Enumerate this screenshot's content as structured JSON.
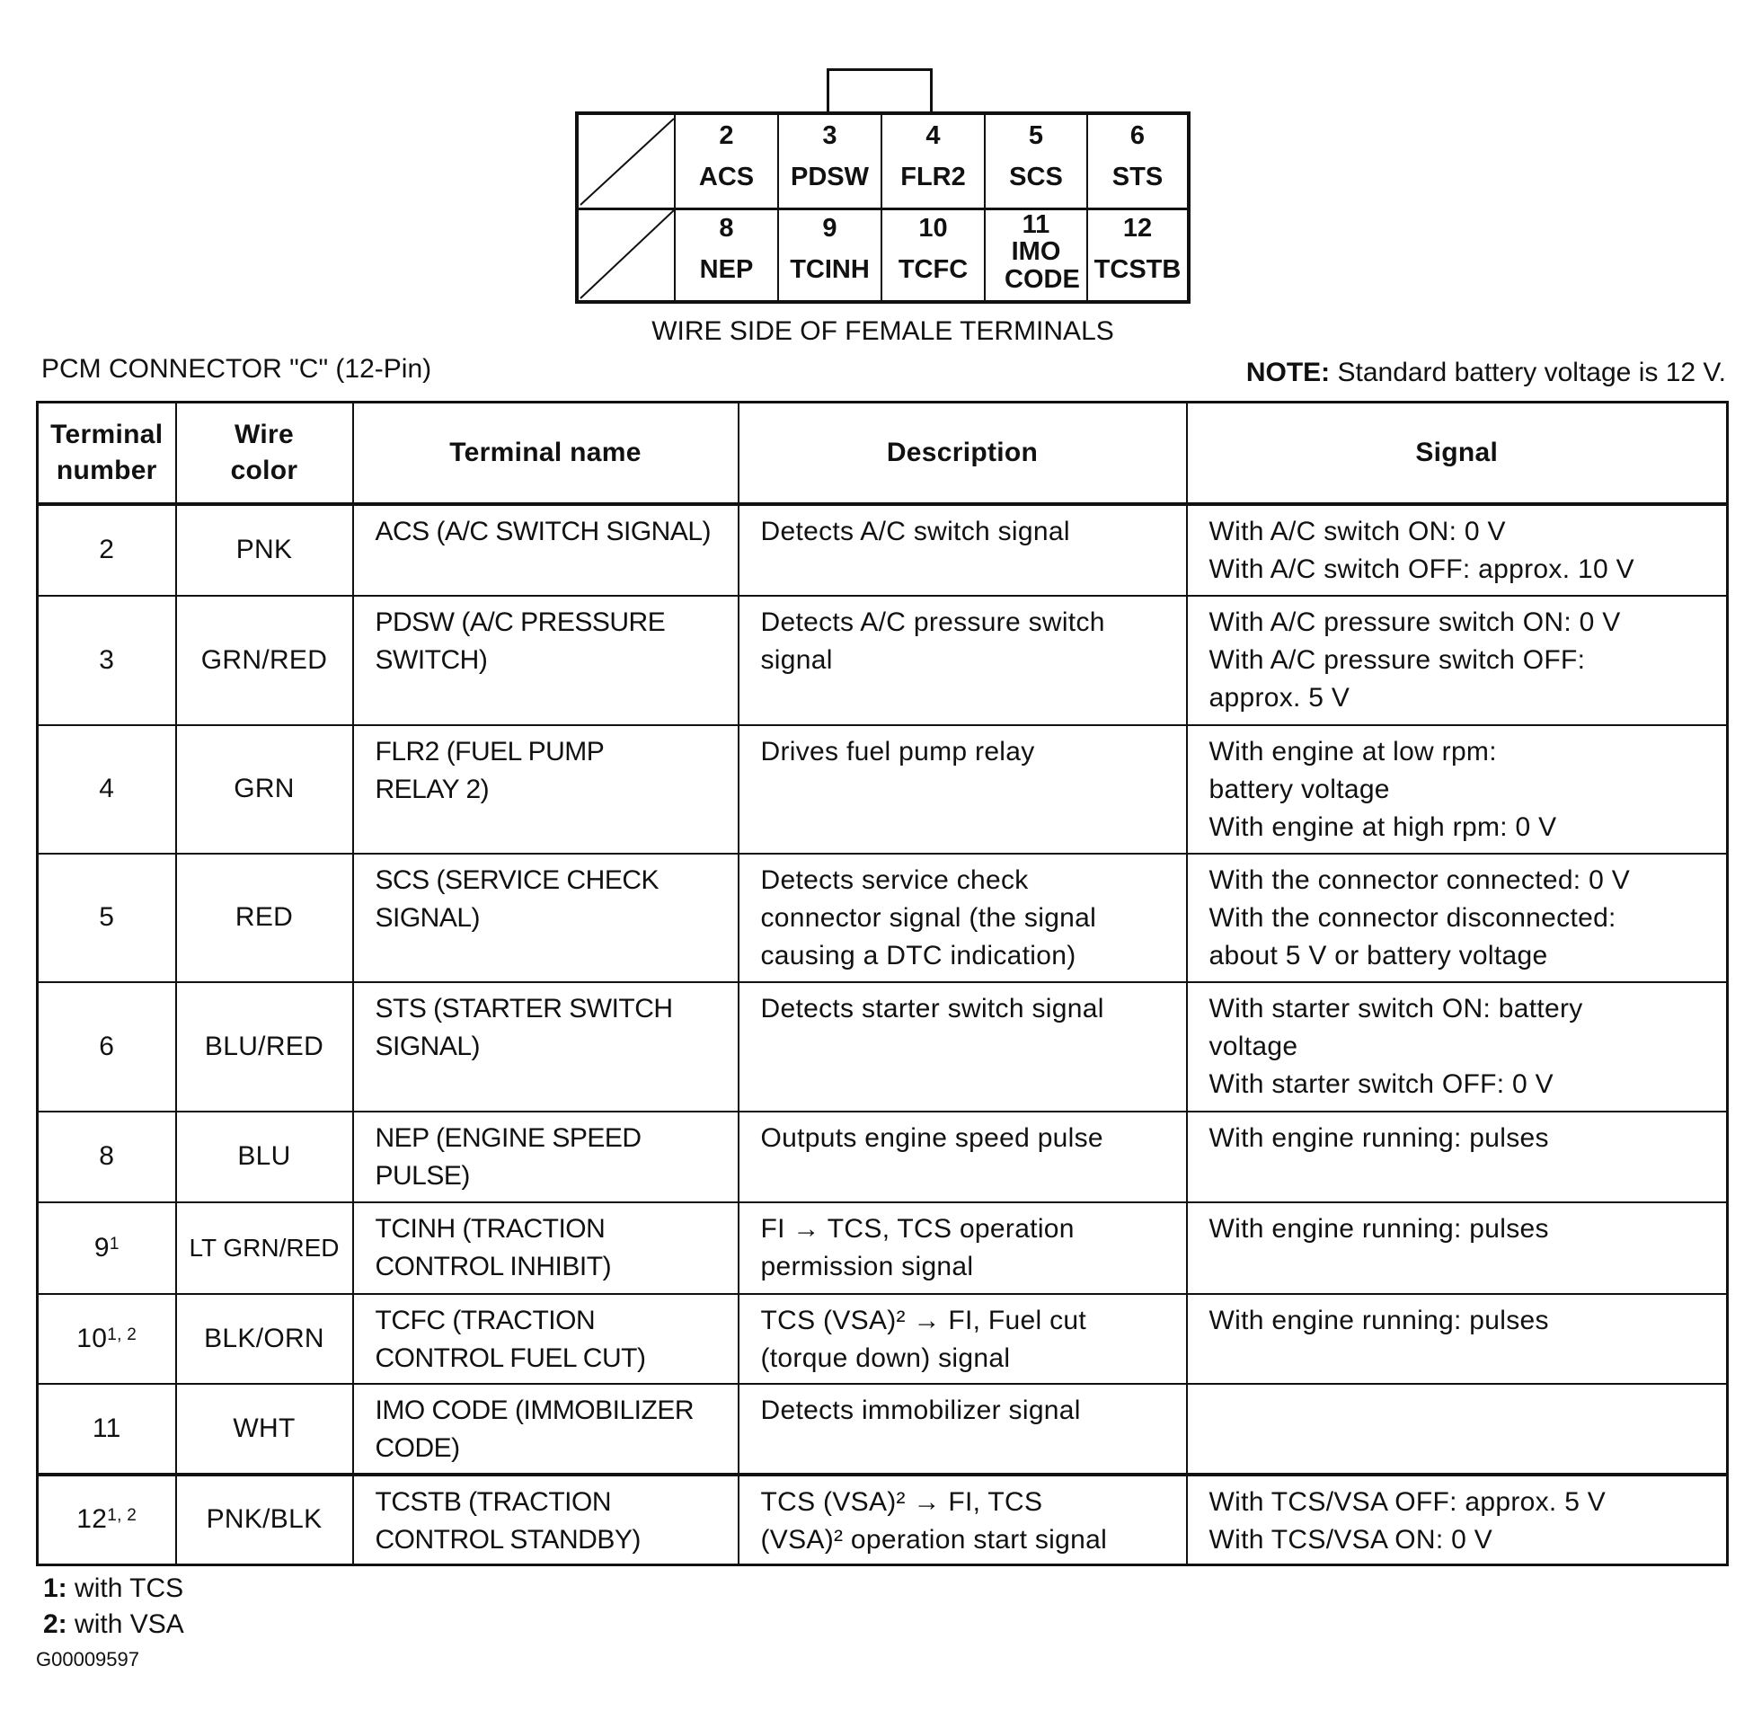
{
  "connector": {
    "top_row": [
      {
        "num": "2",
        "name": "ACS"
      },
      {
        "num": "3",
        "name": "PDSW"
      },
      {
        "num": "4",
        "name": "FLR2"
      },
      {
        "num": "5",
        "name": "SCS"
      },
      {
        "num": "6",
        "name": "STS"
      }
    ],
    "bottom_row": [
      {
        "num": "8",
        "name": "NEP"
      },
      {
        "num": "9",
        "name": "TCINH"
      },
      {
        "num": "10",
        "name": "TCFC"
      },
      {
        "num": "11",
        "name": "IMO CODE"
      },
      {
        "num": "12",
        "name": "TCSTB"
      }
    ],
    "caption": "WIRE SIDE OF FEMALE TERMINALS"
  },
  "title": "PCM CONNECTOR \"C\" (12-Pin)",
  "note": {
    "label": "NOTE:",
    "text": " Standard battery voltage is 12 V."
  },
  "table": {
    "headers": [
      "Terminal number",
      "Wire color",
      "Terminal name",
      "Description",
      "Signal"
    ],
    "rows": [
      {
        "terminal": "2",
        "sup": "",
        "wire": "PNK",
        "name": [
          "ACS (A/C SWITCH SIGNAL)"
        ],
        "desc": [
          "Detects A/C switch signal"
        ],
        "signal": [
          "With A/C switch ON: 0 V",
          "With A/C switch OFF: approx. 10 V"
        ]
      },
      {
        "terminal": "3",
        "sup": "",
        "wire": "GRN/RED",
        "name": [
          "PDSW (A/C PRESSURE",
          "SWITCH)"
        ],
        "desc": [
          "Detects A/C pressure switch",
          "signal"
        ],
        "signal": [
          "With A/C pressure switch ON: 0 V",
          "With A/C pressure switch OFF:",
          "approx. 5 V"
        ]
      },
      {
        "terminal": "4",
        "sup": "",
        "wire": "GRN",
        "name": [
          "FLR2 (FUEL PUMP",
          "RELAY 2)"
        ],
        "desc": [
          "Drives fuel pump relay"
        ],
        "signal": [
          "With engine at low rpm:",
          "battery voltage",
          "With engine at high rpm: 0 V"
        ]
      },
      {
        "terminal": "5",
        "sup": "",
        "wire": "RED",
        "name": [
          "SCS (SERVICE CHECK",
          "SIGNAL)"
        ],
        "desc": [
          "Detects service check",
          "connector signal (the signal",
          "causing a DTC indication)"
        ],
        "signal": [
          "With the connector connected: 0 V",
          "With the connector disconnected:",
          "about 5 V or battery voltage"
        ]
      },
      {
        "terminal": "6",
        "sup": "",
        "wire": "BLU/RED",
        "name": [
          "STS (STARTER SWITCH",
          "SIGNAL)"
        ],
        "desc": [
          "Detects starter switch signal"
        ],
        "signal": [
          "With starter switch ON: battery",
          "voltage",
          "With starter switch OFF: 0 V"
        ]
      },
      {
        "terminal": "8",
        "sup": "",
        "wire": "BLU",
        "name": [
          "NEP (ENGINE SPEED",
          "PULSE)"
        ],
        "desc": [
          "Outputs engine speed pulse"
        ],
        "signal": [
          "With engine running: pulses"
        ]
      },
      {
        "terminal": "9",
        "sup": "1",
        "wire": "LT GRN/RED",
        "name": [
          "TCINH (TRACTION",
          "CONTROL INHIBIT)"
        ],
        "desc": [
          "FI → TCS, TCS operation",
          "permission signal"
        ],
        "signal": [
          "With engine running: pulses"
        ]
      },
      {
        "terminal": "10",
        "sup": "1, 2",
        "wire": "BLK/ORN",
        "name": [
          "TCFC (TRACTION",
          "CONTROL FUEL CUT)"
        ],
        "desc": [
          "TCS (VSA)² → FI, Fuel cut",
          "(torque down) signal"
        ],
        "signal": [
          "With engine running: pulses"
        ]
      },
      {
        "terminal": "11",
        "sup": "",
        "wire": "WHT",
        "name": [
          "IMO CODE (IMMOBILIZER",
          "CODE)"
        ],
        "desc": [
          "Detects immobilizer signal"
        ],
        "signal": []
      },
      {
        "terminal": "12",
        "sup": "1, 2",
        "wire": "PNK/BLK",
        "name": [
          "TCSTB (TRACTION",
          "CONTROL STANDBY)"
        ],
        "desc": [
          "TCS (VSA)² → FI, TCS",
          "(VSA)²  operation start signal"
        ],
        "signal": [
          "With TCS/VSA OFF: approx. 5 V",
          "With TCS/VSA ON: 0 V"
        ]
      }
    ]
  },
  "footnotes": [
    {
      "key": "1:",
      "text": " with TCS"
    },
    {
      "key": "2:",
      "text": " with VSA"
    }
  ],
  "figure_id": "G00009597"
}
